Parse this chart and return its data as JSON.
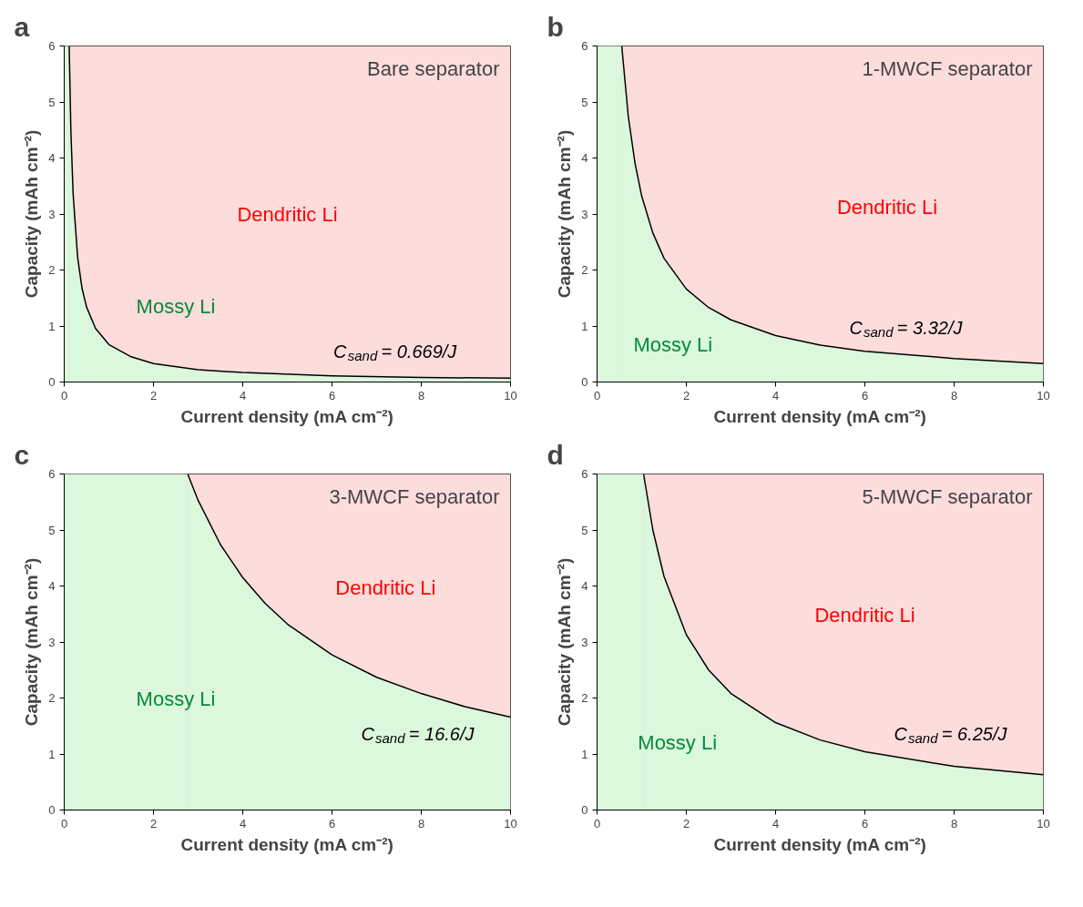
{
  "chart_data": [
    {
      "type": "area",
      "title": "a",
      "subtitle": "Bare separator",
      "xlabel": "Current density (mA cm⁻²)",
      "ylabel": "Capacity (mAh cm⁻²)",
      "xlim": [
        0,
        10
      ],
      "ylim": [
        0,
        6
      ],
      "xticks": [
        0,
        2,
        4,
        6,
        8,
        10
      ],
      "yticks": [
        0,
        1,
        2,
        3,
        4,
        5,
        6
      ],
      "grid": false,
      "line_style": "solid",
      "bands": [
        {
          "axis": "y",
          "from": 0,
          "to": 6,
          "color": "#fddcdc"
        },
        {
          "axis": "x",
          "from": 0,
          "to": 0.1115,
          "color": "#dcf8dc"
        }
      ],
      "series": [
        {
          "color": "#dcf8dc",
          "x": [
            0.1115,
            0.15,
            0.2,
            0.3,
            0.4,
            0.5,
            0.7,
            1,
            1.5,
            2,
            3,
            4,
            6,
            8,
            10
          ],
          "values": [
            6,
            4.46,
            3.35,
            2.23,
            1.67,
            1.34,
            0.96,
            0.67,
            0.45,
            0.33,
            0.22,
            0.17,
            0.11,
            0.08,
            0.07
          ]
        }
      ],
      "annotations": [
        "Dendritic Li",
        "Mossy Li",
        "C$_{sand}$ = 0.669/J"
      ]
    },
    {
      "type": "area",
      "title": "b",
      "subtitle": "1-MWCF separator",
      "xlabel": "Current density (mA cm⁻²)",
      "ylabel": "Capacity (mAh cm⁻²)",
      "xlim": [
        0,
        10
      ],
      "ylim": [
        0,
        6
      ],
      "xticks": [
        0,
        2,
        4,
        6,
        8,
        10
      ],
      "yticks": [
        0,
        1,
        2,
        3,
        4,
        5,
        6
      ],
      "grid": false,
      "line_style": "solid",
      "bands": [
        {
          "axis": "y",
          "from": 0,
          "to": 6,
          "color": "#fddcdc"
        },
        {
          "axis": "x",
          "from": 0,
          "to": 0.553,
          "color": "#dcf8dc"
        }
      ],
      "series": [
        {
          "color": "#dcf8dc",
          "x": [
            0.553,
            0.7,
            0.85,
            1,
            1.25,
            1.5,
            2,
            2.5,
            3,
            4,
            5,
            6,
            8,
            10
          ],
          "values": [
            6,
            4.74,
            3.91,
            3.32,
            2.66,
            2.21,
            1.66,
            1.33,
            1.11,
            0.83,
            0.66,
            0.55,
            0.42,
            0.33
          ]
        }
      ],
      "annotations": [
        "Dendritic Li",
        "Mossy Li",
        "C$_{sand}$ = 3.32/J"
      ]
    },
    {
      "type": "area",
      "title": "c",
      "subtitle": "3-MWCF separator",
      "xlabel": "Current density (mA cm⁻²)",
      "ylabel": "Capacity (mAh cm⁻²)",
      "xlim": [
        0,
        10
      ],
      "ylim": [
        0,
        6
      ],
      "xticks": [
        0,
        2,
        4,
        6,
        8,
        10
      ],
      "yticks": [
        0,
        1,
        2,
        3,
        4,
        5,
        6
      ],
      "grid": false,
      "line_style": "solid",
      "bands": [
        {
          "axis": "y",
          "from": 0,
          "to": 6,
          "color": "#fddcdc"
        },
        {
          "axis": "x",
          "from": 0,
          "to": 2.767,
          "color": "#dcf8dc"
        }
      ],
      "series": [
        {
          "color": "#dcf8dc",
          "x": [
            2.767,
            3,
            3.5,
            4,
            4.5,
            5,
            6,
            7,
            8,
            9,
            10
          ],
          "values": [
            6,
            5.53,
            4.74,
            4.15,
            3.69,
            3.32,
            2.77,
            2.37,
            2.08,
            1.84,
            1.66
          ]
        }
      ],
      "annotations": [
        "Dendritic Li",
        "Mossy Li",
        "C$_{sand}$ = 16.6/J"
      ]
    },
    {
      "type": "area",
      "title": "d",
      "subtitle": "5-MWCF separator",
      "xlabel": "Current density (mA cm⁻²)",
      "ylabel": "Capacity (mAh cm⁻²)",
      "xlim": [
        0,
        10
      ],
      "ylim": [
        0,
        6
      ],
      "xticks": [
        0,
        2,
        4,
        6,
        8,
        10
      ],
      "yticks": [
        0,
        1,
        2,
        3,
        4,
        5,
        6
      ],
      "grid": false,
      "line_style": "solid",
      "bands": [
        {
          "axis": "y",
          "from": 0,
          "to": 6,
          "color": "#fddcdc"
        },
        {
          "axis": "x",
          "from": 0,
          "to": 1.042,
          "color": "#dcf8dc"
        }
      ],
      "series": [
        {
          "color": "#dcf8dc",
          "x": [
            1.042,
            1.25,
            1.5,
            2,
            2.5,
            3,
            4,
            5,
            6,
            8,
            10
          ],
          "values": [
            6,
            5,
            4.17,
            3.13,
            2.5,
            2.08,
            1.56,
            1.25,
            1.04,
            0.78,
            0.63
          ]
        }
      ],
      "annotations": [
        "Dendritic Li",
        "Mossy Li",
        "C$_{sand}$ = 6.25/J"
      ]
    }
  ]
}
